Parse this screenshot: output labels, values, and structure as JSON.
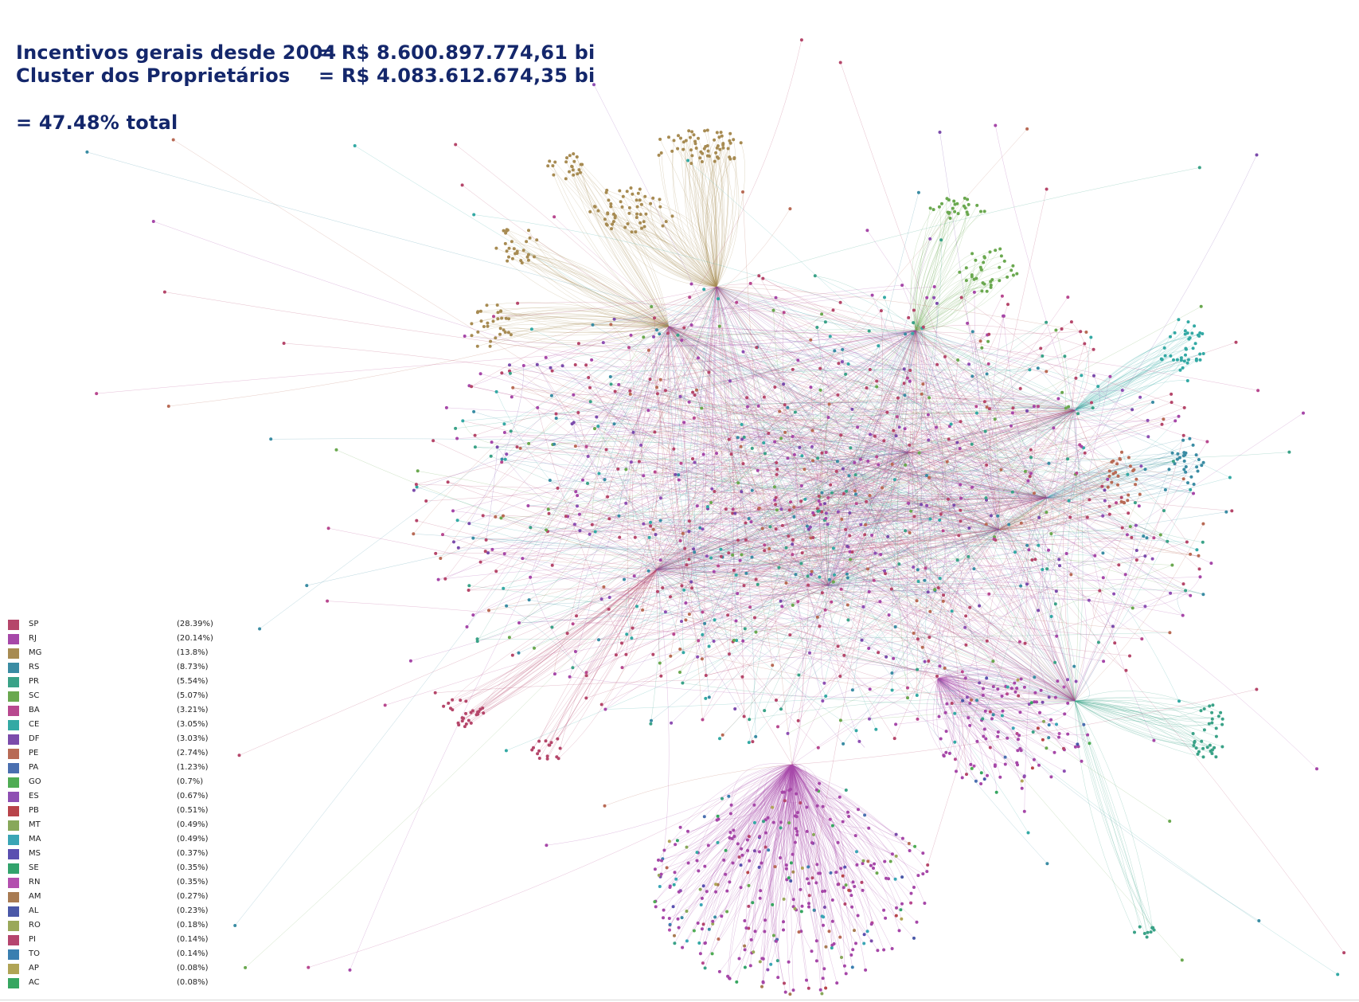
{
  "headline": {
    "line1_label": "Incentivos gerais desde 2004",
    "line1_value": "= R$ 8.600.897.774,61 bi",
    "line2_label": "Cluster dos Proprietários",
    "line2_value": "= R$ 4.083.612.674,35 bi",
    "line3": "= 47.48% total"
  },
  "legend": [
    {
      "state": "SP",
      "pct": "(28.39%)",
      "color": "#b5466a"
    },
    {
      "state": "RJ",
      "pct": "(20.14%)",
      "color": "#a647a8"
    },
    {
      "state": "MG",
      "pct": "(13.8%)",
      "color": "#a78b52"
    },
    {
      "state": "RS",
      "pct": "(8.73%)",
      "color": "#3a8ca3"
    },
    {
      "state": "PR",
      "pct": "(5.54%)",
      "color": "#3aa287"
    },
    {
      "state": "SC",
      "pct": "(5.07%)",
      "color": "#6aa84f"
    },
    {
      "state": "BA",
      "pct": "(3.21%)",
      "color": "#b8488f"
    },
    {
      "state": "CE",
      "pct": "(3.05%)",
      "color": "#33a9a4"
    },
    {
      "state": "DF",
      "pct": "(3.03%)",
      "color": "#7b4bab"
    },
    {
      "state": "PE",
      "pct": "(2.74%)",
      "color": "#b86a55"
    },
    {
      "state": "PA",
      "pct": "(1.23%)",
      "color": "#4a6fb0"
    },
    {
      "state": "GO",
      "pct": "(0.7%)",
      "color": "#4fac54"
    },
    {
      "state": "ES",
      "pct": "(0.67%)",
      "color": "#8e4fb3"
    },
    {
      "state": "PB",
      "pct": "(0.51%)",
      "color": "#b8444a"
    },
    {
      "state": "MT",
      "pct": "(0.49%)",
      "color": "#88a85a"
    },
    {
      "state": "MA",
      "pct": "(0.49%)",
      "color": "#3aa5b5"
    },
    {
      "state": "MS",
      "pct": "(0.37%)",
      "color": "#5a4fb0"
    },
    {
      "state": "SE",
      "pct": "(0.35%)",
      "color": "#32a36c"
    },
    {
      "state": "RN",
      "pct": "(0.35%)",
      "color": "#b34fae"
    },
    {
      "state": "AM",
      "pct": "(0.27%)",
      "color": "#a87b52"
    },
    {
      "state": "AL",
      "pct": "(0.23%)",
      "color": "#4a58a8"
    },
    {
      "state": "RO",
      "pct": "(0.18%)",
      "color": "#9aa85a"
    },
    {
      "state": "PI",
      "pct": "(0.14%)",
      "color": "#b5456e"
    },
    {
      "state": "TO",
      "pct": "(0.14%)",
      "color": "#3a7fb0"
    },
    {
      "state": "AP",
      "pct": "(0.08%)",
      "color": "#b0a455"
    },
    {
      "state": "AC",
      "pct": "(0.08%)",
      "color": "#36a660"
    }
  ]
}
